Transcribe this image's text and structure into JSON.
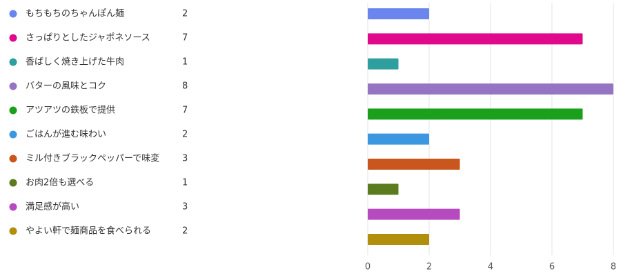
{
  "chart_data": {
    "type": "bar",
    "orientation": "horizontal",
    "categories": [
      "もちもちのちゃんぽん麺",
      "さっぱりとしたジャポネソース",
      "香ばしく焼き上げた牛肉",
      "バターの風味とコク",
      "アツアツの鉄板で提供",
      "ごはんが進む味わい",
      "ミル付きブラックペッパーで味変",
      "お肉2倍も選べる",
      "満足感が高い",
      "やよい軒で麺商品を食べられる"
    ],
    "values": [
      2,
      7,
      1,
      8,
      7,
      2,
      3,
      1,
      3,
      2
    ],
    "colors": [
      "#6b85ef",
      "#e0098c",
      "#2e9e9e",
      "#9575c3",
      "#1aa01a",
      "#3b97e0",
      "#c9561c",
      "#5b7b1e",
      "#b64bc0",
      "#b18f0c"
    ],
    "xlim": [
      0,
      8
    ],
    "xticks": [
      0,
      2,
      4,
      6,
      8
    ],
    "grid": true
  }
}
